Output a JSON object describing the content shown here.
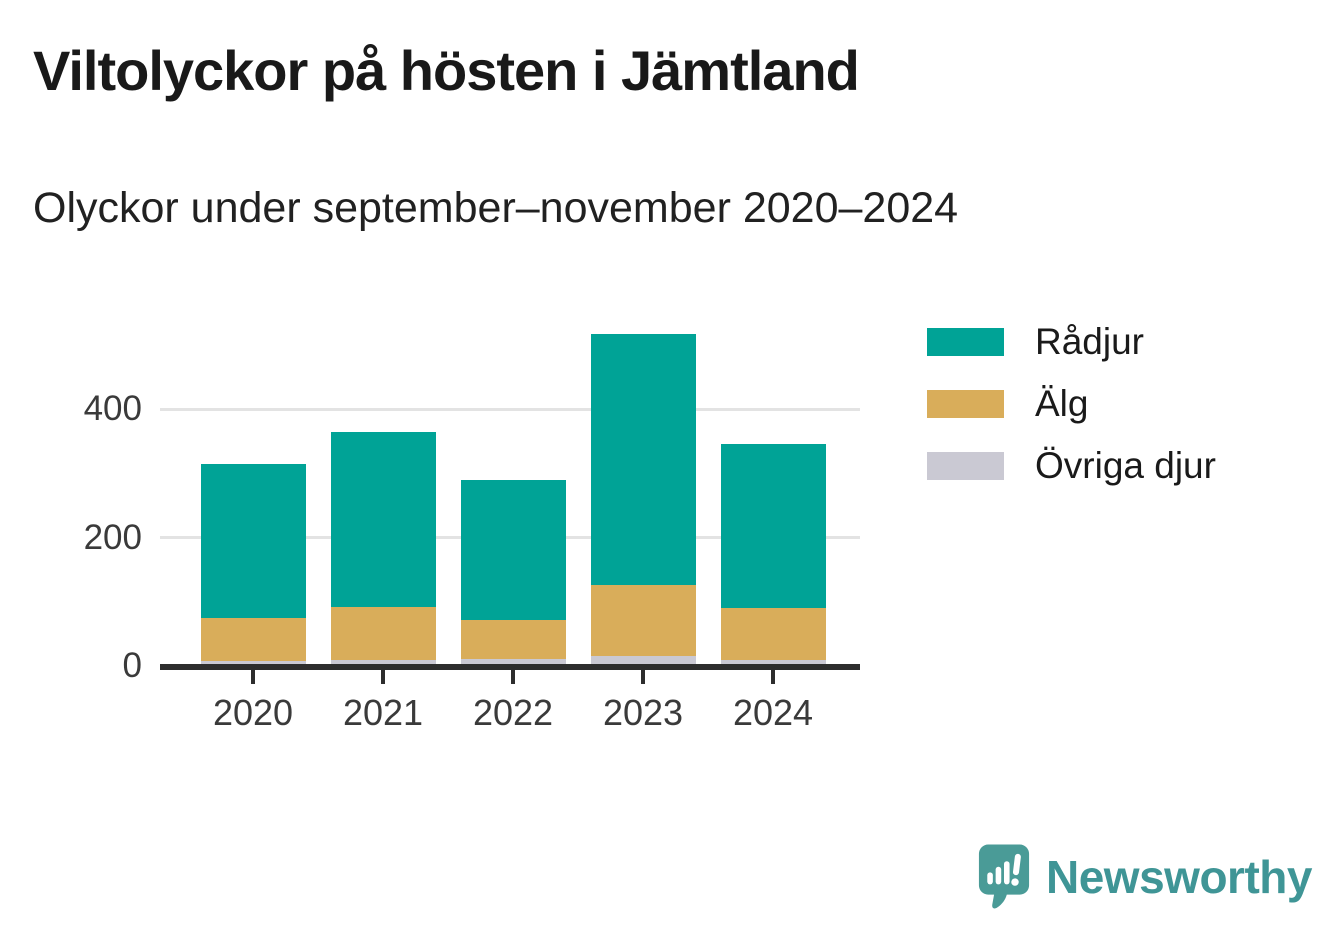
{
  "header": {
    "title": "Viltolyckor på hösten i Jämtland",
    "subtitle": "Olyckor under september–november 2020–2024"
  },
  "chart_data": {
    "type": "bar",
    "stacked": true,
    "categories": [
      "2020",
      "2021",
      "2022",
      "2023",
      "2024"
    ],
    "series": [
      {
        "name": "Rådjur",
        "color": "#00a396",
        "values": [
          240,
          273,
          218,
          392,
          256
        ]
      },
      {
        "name": "Älg",
        "color": "#d9ad5a",
        "values": [
          67,
          82,
          61,
          110,
          80
        ]
      },
      {
        "name": "Övriga djur",
        "color": "#cac9d3",
        "values": [
          8,
          10,
          11,
          16,
          10
        ]
      }
    ],
    "stack_bottom_to_top": [
      "Övriga djur",
      "Älg",
      "Rådjur"
    ],
    "totals": [
      315,
      365,
      290,
      518,
      346
    ],
    "title": "Viltolyckor på hösten i Jämtland",
    "subtitle": "Olyckor under september–november 2020–2024",
    "xlabel": "",
    "ylabel": "",
    "yticks": [
      0,
      200,
      400
    ],
    "ylim": [
      0,
      530
    ],
    "grid": "horizontal",
    "legend_position": "right",
    "colors": {
      "axis": "#2d2d2d",
      "gridline": "#e3e3e3",
      "tick_label": "#3a3a3a"
    }
  },
  "legend": {
    "items": [
      {
        "label": "Rådjur",
        "color": "#00a396"
      },
      {
        "label": "Älg",
        "color": "#d9ad5a"
      },
      {
        "label": "Övriga djur",
        "color": "#cac9d3"
      }
    ]
  },
  "footer": {
    "brand": "Newsworthy",
    "brand_color": "#3f9596",
    "icon_color": "#4a9b97"
  }
}
